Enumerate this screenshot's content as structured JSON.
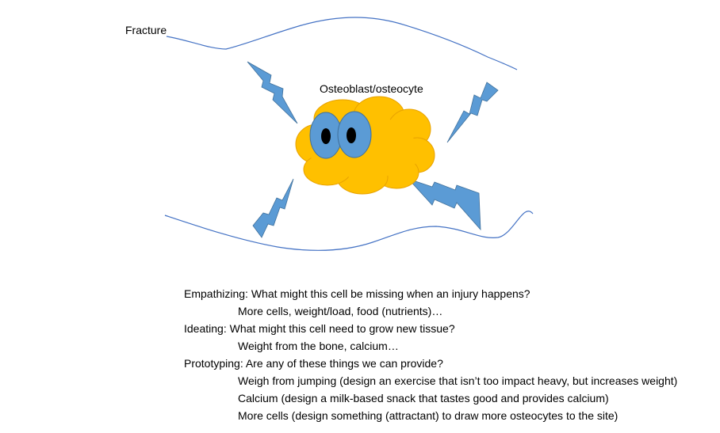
{
  "diagram": {
    "fracture_label": "Fracture",
    "cell_label": "Osteoblast/osteocyte",
    "colors": {
      "cell_fill": "#FFC000",
      "cell_outline": "#F0A500",
      "eye_fill": "#5B9BD5",
      "bolt_fill": "#5B9BD5",
      "bone_line": "#4472C4"
    }
  },
  "notes": {
    "empathizing": {
      "question": "Empathizing: What might this cell be missing when an injury happens?",
      "answer": "More cells, weight/load, food (nutrients)…"
    },
    "ideating": {
      "question": "Ideating: What might this cell need to grow new tissue?",
      "answer": "Weight from the bone, calcium…"
    },
    "prototyping": {
      "question": "Prototyping: Are any of these things we can provide?",
      "answers": [
        "Weigh from jumping (design an exercise that isn’t too impact heavy, but increases weight)",
        "Calcium (design a milk-based snack that tastes good and provides calcium)",
        "More cells (design something (attractant) to draw more osteocytes to the site)"
      ]
    }
  }
}
